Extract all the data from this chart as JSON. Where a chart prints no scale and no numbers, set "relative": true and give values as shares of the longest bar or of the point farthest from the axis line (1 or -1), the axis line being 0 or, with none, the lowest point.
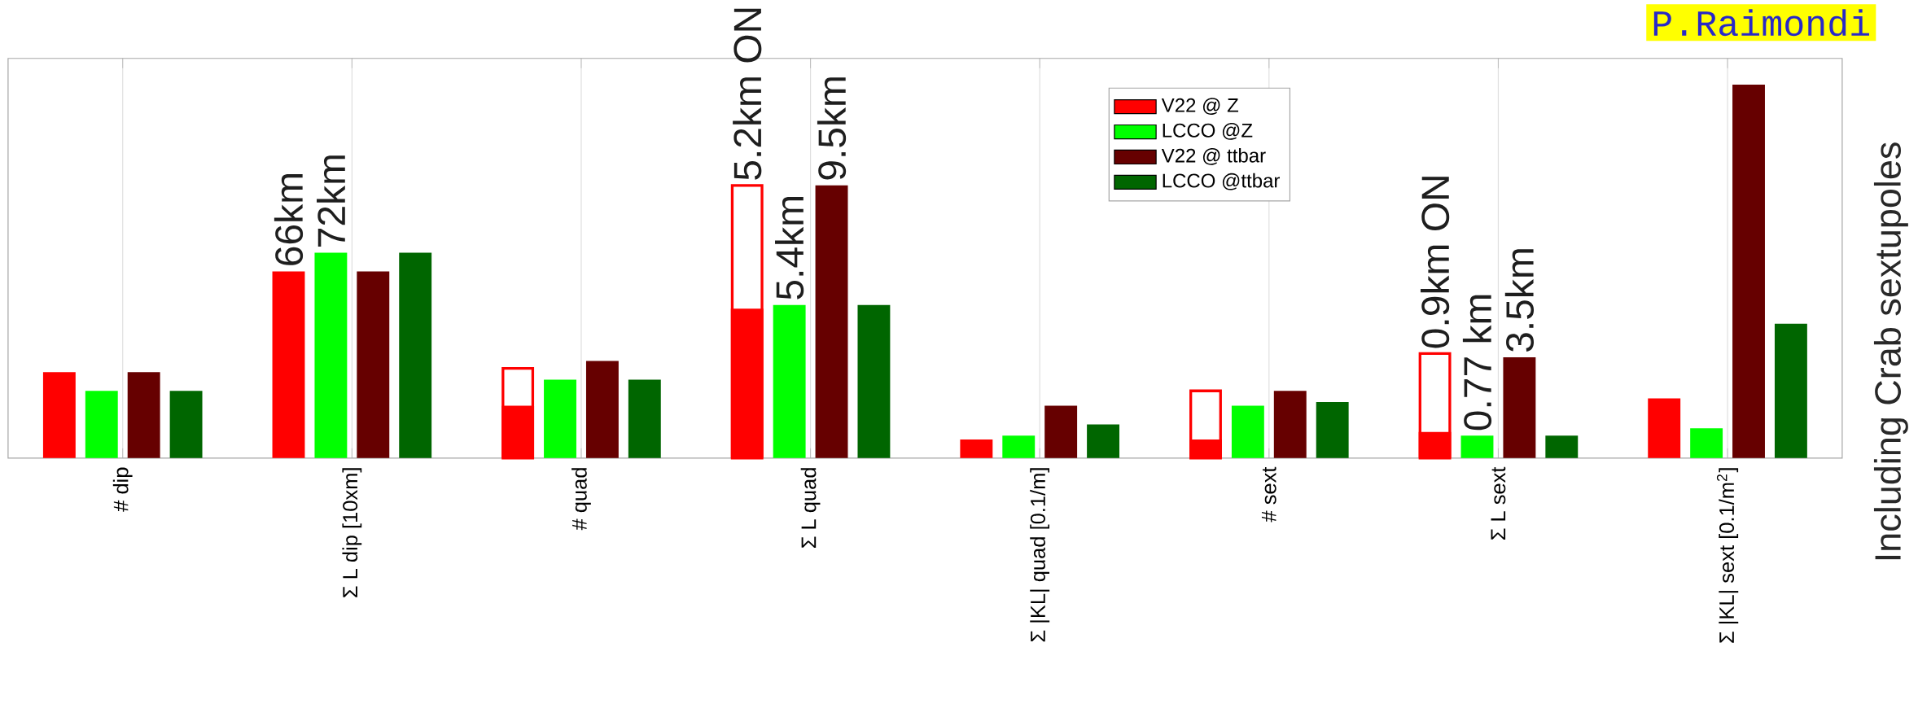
{
  "chart_data": {
    "type": "bar",
    "relative": true,
    "grid": "x",
    "legend": "top right",
    "categories": [
      "# dip",
      "Σ L dip [10xm]",
      "# quad",
      "Σ L quad",
      "Σ |KL| quad [0.1/m]",
      "# sext",
      "Σ L sext",
      "Σ |KL| sext [0.1/m$^{2}$]"
    ],
    "series": [
      {
        "color": "#ff0000",
        "values": [
          null,
          null,
          0.24,
          0.73,
          null,
          0.18,
          0.28,
          null
        ]
      },
      {
        "name": "V22 @ Z",
        "color": "#ff0000",
        "values": [
          0.23,
          0.5,
          0.14,
          0.4,
          0.05,
          0.05,
          0.07,
          0.16
        ]
      },
      {
        "name": "LCCO @Z",
        "color": "#00ff00",
        "values": [
          0.18,
          0.55,
          0.21,
          0.41,
          0.06,
          0.14,
          0.06,
          0.08
        ]
      },
      {
        "name": "V22 @ ttbar",
        "color": "#660000",
        "values": [
          0.23,
          0.5,
          0.26,
          0.73,
          0.14,
          0.18,
          0.27,
          1.0
        ]
      },
      {
        "name": "LCCO @ttbar",
        "color": "#006600",
        "values": [
          0.18,
          0.55,
          0.21,
          0.41,
          0.09,
          0.15,
          0.06,
          0.36
        ]
      }
    ],
    "annotations": [
      "Including Crab sextupoles",
      "P.Raimondi",
      "66km",
      "72km",
      "5.2km ON",
      "5.4km",
      "9.5km",
      "0.9km ON",
      "0.77 km",
      "3.5km"
    ]
  }
}
